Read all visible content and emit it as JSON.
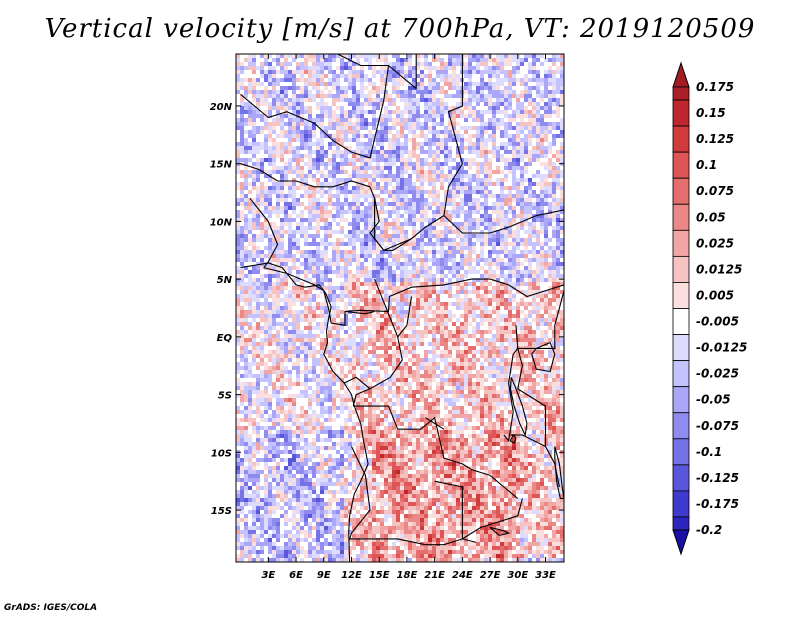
{
  "title": "Vertical velocity [m/s] at 700hPa, VT: 2019120509",
  "credit": "GrADS: IGES/COLA",
  "map": {
    "lon_range": [
      -0.5,
      35.0
    ],
    "lat_range": [
      -19.5,
      24.5
    ],
    "lon_ticks": [
      {
        "value": 3,
        "label": "3E"
      },
      {
        "value": 6,
        "label": "6E"
      },
      {
        "value": 9,
        "label": "9E"
      },
      {
        "value": 12,
        "label": "12E"
      },
      {
        "value": 15,
        "label": "15E"
      },
      {
        "value": 18,
        "label": "18E"
      },
      {
        "value": 21,
        "label": "21E"
      },
      {
        "value": 24,
        "label": "24E"
      },
      {
        "value": 27,
        "label": "27E"
      },
      {
        "value": 30,
        "label": "30E"
      },
      {
        "value": 33,
        "label": "33E"
      }
    ],
    "lat_ticks": [
      {
        "value": 20,
        "label": "20N"
      },
      {
        "value": 15,
        "label": "15N"
      },
      {
        "value": 10,
        "label": "10N"
      },
      {
        "value": 5,
        "label": "5N"
      },
      {
        "value": 0,
        "label": "EQ"
      },
      {
        "value": -5,
        "label": "5S"
      },
      {
        "value": -10,
        "label": "10S"
      },
      {
        "value": -15,
        "label": "15S"
      }
    ],
    "borders": [
      [
        [
          10.5,
          24.5
        ],
        [
          13,
          23.5
        ],
        [
          16,
          23.5
        ],
        [
          19,
          21.5
        ],
        [
          19,
          24.5
        ]
      ],
      [
        [
          24,
          24.5
        ],
        [
          24,
          20
        ],
        [
          22.5,
          19.5
        ],
        [
          24,
          15
        ],
        [
          22.5,
          13
        ],
        [
          22,
          10.5
        ],
        [
          24,
          9
        ],
        [
          27,
          9
        ],
        [
          29,
          9.5
        ],
        [
          32,
          10.5
        ],
        [
          35,
          11
        ]
      ],
      [
        [
          0,
          21
        ],
        [
          3,
          19
        ],
        [
          5,
          19.5
        ],
        [
          8,
          18.5
        ],
        [
          10,
          17
        ],
        [
          12,
          16
        ],
        [
          14,
          15.5
        ],
        [
          15.5,
          20.5
        ],
        [
          16,
          23.5
        ]
      ],
      [
        [
          0,
          15
        ],
        [
          2,
          14.5
        ],
        [
          4,
          13.5
        ],
        [
          6,
          13.5
        ],
        [
          8,
          13
        ],
        [
          10,
          13
        ],
        [
          12,
          13.5
        ],
        [
          14,
          13
        ]
      ],
      [
        [
          14,
          13
        ],
        [
          14.5,
          12
        ],
        [
          15,
          10
        ],
        [
          14,
          9
        ],
        [
          15.5,
          7.5
        ],
        [
          18.5,
          8.5
        ],
        [
          20,
          9.5
        ],
        [
          22,
          10.5
        ]
      ],
      [
        [
          14.5,
          12
        ],
        [
          14.5,
          8.5
        ],
        [
          15.5,
          7.5
        ],
        [
          16.5,
          7.5
        ],
        [
          18.5,
          8.5
        ]
      ],
      [
        [
          1,
          12
        ],
        [
          2,
          11
        ],
        [
          3,
          10
        ],
        [
          3.5,
          9
        ],
        [
          4,
          8
        ],
        [
          3,
          6.5
        ],
        [
          2.5,
          6
        ]
      ],
      [
        [
          2.5,
          6
        ],
        [
          5,
          5.5
        ],
        [
          8,
          4.5
        ],
        [
          9,
          4
        ]
      ],
      [
        [
          9,
          4
        ],
        [
          9.5,
          2.5
        ],
        [
          9.8,
          1.2
        ],
        [
          11.3,
          1
        ],
        [
          11.3,
          2.2
        ],
        [
          13,
          2.3
        ],
        [
          16,
          2.2
        ],
        [
          16.1,
          3.5
        ],
        [
          18.5,
          4.3
        ],
        [
          22,
          4.5
        ],
        [
          25,
          5
        ],
        [
          27,
          5
        ],
        [
          29,
          4.5
        ],
        [
          31,
          3.5
        ],
        [
          35,
          4.5
        ]
      ],
      [
        [
          11.3,
          2.2
        ],
        [
          13.5,
          2
        ],
        [
          14.5,
          2.2
        ]
      ],
      [
        [
          14.5,
          5
        ],
        [
          16,
          2
        ],
        [
          17,
          0
        ],
        [
          17.5,
          -2
        ],
        [
          16.2,
          -3.5
        ],
        [
          14,
          -4.5
        ],
        [
          12.5,
          -5
        ],
        [
          12.2,
          -6
        ]
      ],
      [
        [
          17,
          0
        ],
        [
          18,
          1
        ],
        [
          18.5,
          3.5
        ]
      ],
      [
        [
          12.2,
          -6
        ],
        [
          16,
          -6
        ],
        [
          17,
          -8
        ],
        [
          19.5,
          -8
        ],
        [
          21,
          -7
        ],
        [
          22,
          -10.5
        ],
        [
          24,
          -11
        ],
        [
          25,
          -11.5
        ],
        [
          27,
          -12
        ],
        [
          28.5,
          -13
        ],
        [
          30,
          -14
        ]
      ],
      [
        [
          12,
          -9.5
        ],
        [
          13.5,
          -12
        ],
        [
          14,
          -15
        ],
        [
          12,
          -17
        ],
        [
          11.8,
          -17.5
        ],
        [
          14,
          -17.5
        ],
        [
          17,
          -17.5
        ],
        [
          20,
          -18
        ],
        [
          22,
          -18
        ],
        [
          24,
          -17.5
        ],
        [
          25.5,
          -17.8
        ]
      ],
      [
        [
          21,
          -12.5
        ],
        [
          24,
          -13
        ],
        [
          24,
          -17.5
        ]
      ],
      [
        [
          24,
          -17.5
        ],
        [
          26,
          -16.5
        ],
        [
          28,
          -16
        ],
        [
          30,
          -15.5
        ],
        [
          30.5,
          -14
        ]
      ],
      [
        [
          28.5,
          -8.5
        ],
        [
          29,
          -9
        ],
        [
          29.5,
          -6.5
        ],
        [
          29,
          -4
        ],
        [
          29.5,
          -1.5
        ],
        [
          30,
          -1
        ],
        [
          29.8,
          1
        ]
      ],
      [
        [
          30,
          -1
        ],
        [
          34,
          -1
        ],
        [
          34,
          1
        ],
        [
          35,
          4
        ]
      ],
      [
        [
          30,
          -1
        ],
        [
          30.5,
          -2.5
        ],
        [
          30,
          -4.5
        ],
        [
          31,
          -5
        ],
        [
          33,
          -6
        ],
        [
          33,
          -9.5
        ],
        [
          34,
          -11
        ],
        [
          34.5,
          -13
        ]
      ],
      [
        [
          33,
          -9.5
        ],
        [
          30.5,
          -8.5
        ],
        [
          29,
          -8.5
        ]
      ],
      [
        [
          20,
          -7
        ],
        [
          22,
          -8
        ]
      ],
      [
        [
          14,
          -4.5
        ],
        [
          12.5,
          -3.5
        ],
        [
          11.2,
          -4
        ]
      ]
    ],
    "coast": [
      [
        [
          0,
          6
        ],
        [
          1.5,
          6.2
        ],
        [
          3,
          6.4
        ],
        [
          4.5,
          6
        ],
        [
          6,
          4.5
        ],
        [
          7,
          4.3
        ],
        [
          8.5,
          4.5
        ],
        [
          9.2,
          3.8
        ],
        [
          9.8,
          2.6
        ],
        [
          9.5,
          1.5
        ],
        [
          9.3,
          0.5
        ],
        [
          9.4,
          -0.5
        ],
        [
          9,
          -1.5
        ],
        [
          10,
          -3
        ],
        [
          11.2,
          -4
        ],
        [
          12,
          -5
        ],
        [
          12.3,
          -6
        ],
        [
          13,
          -7.5
        ],
        [
          13.3,
          -9
        ],
        [
          13.8,
          -11
        ],
        [
          13,
          -12.5
        ],
        [
          12.3,
          -13.6
        ],
        [
          11.8,
          -15.5
        ],
        [
          11.7,
          -17
        ],
        [
          11.8,
          -19.5
        ]
      ]
    ],
    "lakes": [
      [
        [
          32,
          -1
        ],
        [
          33.5,
          -0.5
        ],
        [
          34,
          -1.5
        ],
        [
          33.5,
          -3
        ],
        [
          32,
          -2.8
        ],
        [
          31.5,
          -1.5
        ],
        [
          32,
          -1
        ]
      ],
      [
        [
          29.3,
          -3.5
        ],
        [
          29.8,
          -4.5
        ],
        [
          30.5,
          -6
        ],
        [
          31,
          -7.5
        ],
        [
          30.8,
          -8.5
        ],
        [
          30.2,
          -7.5
        ],
        [
          29.6,
          -6
        ],
        [
          29.2,
          -4.5
        ],
        [
          29.3,
          -3.5
        ]
      ],
      [
        [
          34,
          -9.5
        ],
        [
          34.5,
          -11
        ],
        [
          34.8,
          -13
        ],
        [
          35,
          -14
        ],
        [
          34.6,
          -14
        ],
        [
          34.2,
          -12.5
        ],
        [
          34,
          -10.5
        ],
        [
          34,
          -9.5
        ]
      ],
      [
        [
          27,
          -16.5
        ],
        [
          28.5,
          -16.8
        ],
        [
          29,
          -17
        ],
        [
          28,
          -17.2
        ],
        [
          27,
          -16.5
        ]
      ],
      [
        [
          29.5,
          -8.5
        ],
        [
          29.2,
          -9
        ],
        [
          29.6,
          -9.2
        ],
        [
          29.8,
          -8.8
        ],
        [
          29.5,
          -8.5
        ]
      ]
    ]
  },
  "colorbar": {
    "ticks": [
      "0.175",
      "0.15",
      "0.125",
      "0.1",
      "0.075",
      "0.05",
      "0.025",
      "0.0125",
      "0.005",
      "-0.005",
      "-0.0125",
      "-0.025",
      "-0.05",
      "-0.075",
      "-0.1",
      "-0.125",
      "-0.175",
      "-0.2"
    ],
    "colors": [
      "#aa1f28",
      "#c0262d",
      "#d23b3b",
      "#df5454",
      "#e46e6e",
      "#ea8888",
      "#f1a5a5",
      "#f6c3c3",
      "#fbdfdf",
      "#ffffff",
      "#dddcff",
      "#c4c2ff",
      "#aaa7f8",
      "#8f8bef",
      "#7571e6",
      "#5a56dc",
      "#3f3ace",
      "#2c25bf",
      "#1f17b2"
    ],
    "top_color": "#a31c24",
    "bottom_color": "#1a10a8"
  }
}
